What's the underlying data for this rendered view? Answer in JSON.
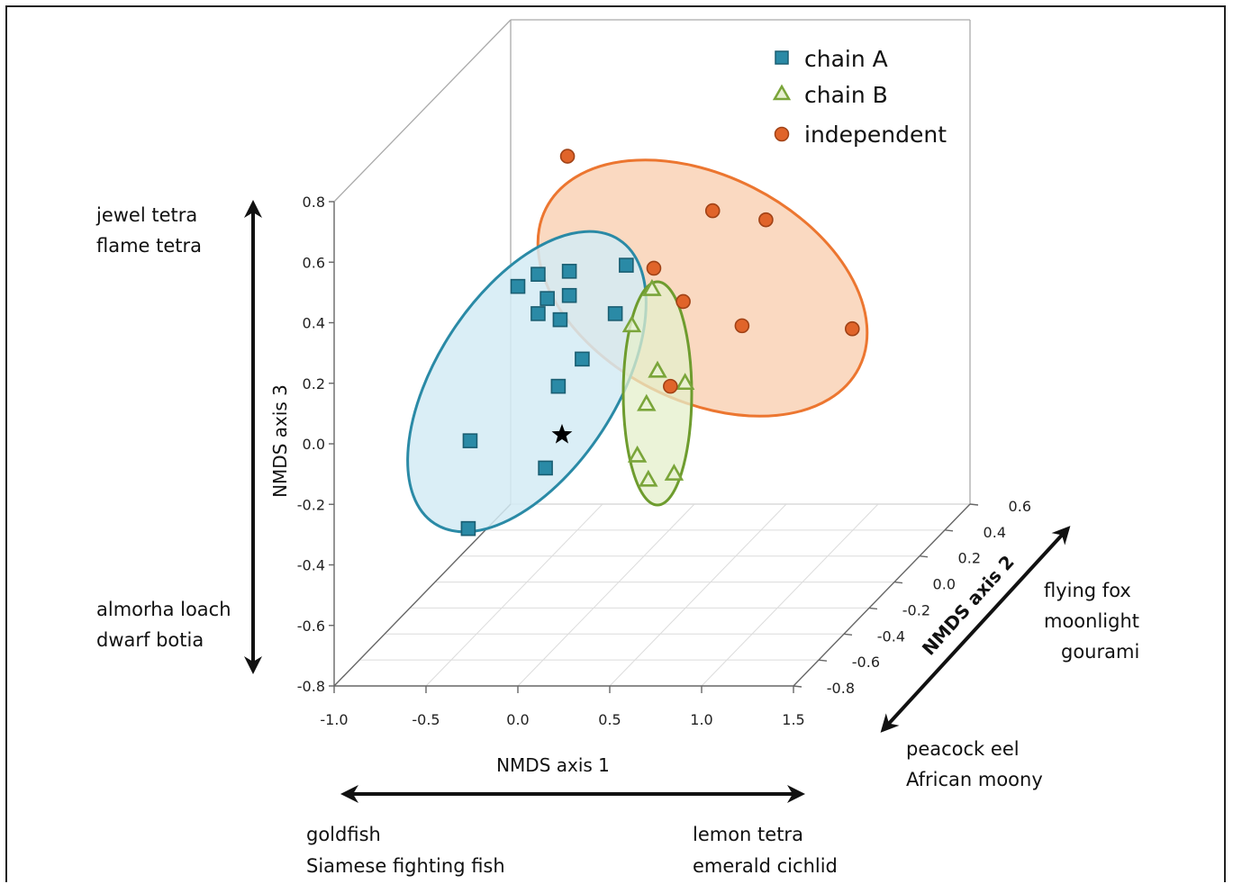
{
  "chart_data": {
    "type": "scatter",
    "projection": "3d",
    "xlabel": "NMDS axis 1",
    "ylabel": "NMDS axis 2",
    "zlabel": "NMDS axis 3",
    "xlim": [
      -1.0,
      1.5
    ],
    "ylim": [
      -0.8,
      0.6
    ],
    "zlim": [
      -0.8,
      0.8
    ],
    "x_ticks": [
      "-1.0",
      "-0.5",
      "0.0",
      "0.5",
      "1.0",
      "1.5"
    ],
    "y_ticks": [
      "-0.8",
      "-0.6",
      "-0.4",
      "-0.2",
      "0.0",
      "0.2",
      "0.4",
      "0.6"
    ],
    "z_ticks": [
      "-0.8",
      "-0.6",
      "-0.4",
      "-0.2",
      "0.0",
      "0.2",
      "0.4",
      "0.6",
      "0.8"
    ],
    "grid": true,
    "legend_position": "top-right",
    "series": [
      {
        "name": "chain A",
        "marker": "square",
        "color": "#2a8aa6",
        "ellipse_fill": "#d4ebf5",
        "ellipse_stroke": "#2a8aa6",
        "points": [
          {
            "x": 0.0,
            "z": 0.52
          },
          {
            "x": 0.11,
            "z": 0.56
          },
          {
            "x": 0.28,
            "z": 0.57
          },
          {
            "x": 0.59,
            "z": 0.59
          },
          {
            "x": 0.16,
            "z": 0.48
          },
          {
            "x": 0.28,
            "z": 0.49
          },
          {
            "x": 0.11,
            "z": 0.43
          },
          {
            "x": 0.23,
            "z": 0.41
          },
          {
            "x": 0.53,
            "z": 0.43
          },
          {
            "x": 0.35,
            "z": 0.28
          },
          {
            "x": 0.22,
            "z": 0.19
          },
          {
            "x": -0.26,
            "z": 0.01
          },
          {
            "x": 0.15,
            "z": -0.08
          },
          {
            "x": -0.27,
            "z": -0.28
          }
        ]
      },
      {
        "name": "chain B",
        "marker": "triangle",
        "color": "#7aa53a",
        "ellipse_fill": "#e4efcb",
        "ellipse_stroke": "#6e9c2e",
        "points": [
          {
            "x": 0.73,
            "z": 0.51
          },
          {
            "x": 0.62,
            "z": 0.39
          },
          {
            "x": 0.76,
            "z": 0.24
          },
          {
            "x": 0.91,
            "z": 0.2
          },
          {
            "x": 0.7,
            "z": 0.13
          },
          {
            "x": 0.65,
            "z": -0.04
          },
          {
            "x": 0.85,
            "z": -0.1
          },
          {
            "x": 0.71,
            "z": -0.12
          }
        ]
      },
      {
        "name": "independent",
        "marker": "circle",
        "color": "#e0642a",
        "ellipse_fill": "#f9d2b6",
        "ellipse_stroke": "#ec7630",
        "points": [
          {
            "x": 0.27,
            "z": 0.95
          },
          {
            "x": 1.06,
            "z": 0.77
          },
          {
            "x": 1.35,
            "z": 0.74
          },
          {
            "x": 0.74,
            "z": 0.58
          },
          {
            "x": 0.9,
            "z": 0.47
          },
          {
            "x": 1.22,
            "z": 0.39
          },
          {
            "x": 1.82,
            "z": 0.38
          },
          {
            "x": 0.83,
            "z": 0.19
          }
        ]
      }
    ],
    "annotations": [
      {
        "label": "star",
        "x": 0.24,
        "z": 0.03
      }
    ]
  },
  "species_labels": {
    "axis3_top": [
      "jewel tetra",
      "flame tetra"
    ],
    "axis3_bottom": [
      "almorha loach",
      "dwarf botia"
    ],
    "axis1_left": [
      "goldfish",
      "Siamese fighting fish"
    ],
    "axis1_right": [
      "lemon tetra",
      "emerald cichlid"
    ],
    "axis2_far": [
      "flying fox",
      "moonlight",
      "gourami"
    ],
    "axis2_near": [
      "peacock eel",
      "African moony"
    ]
  }
}
